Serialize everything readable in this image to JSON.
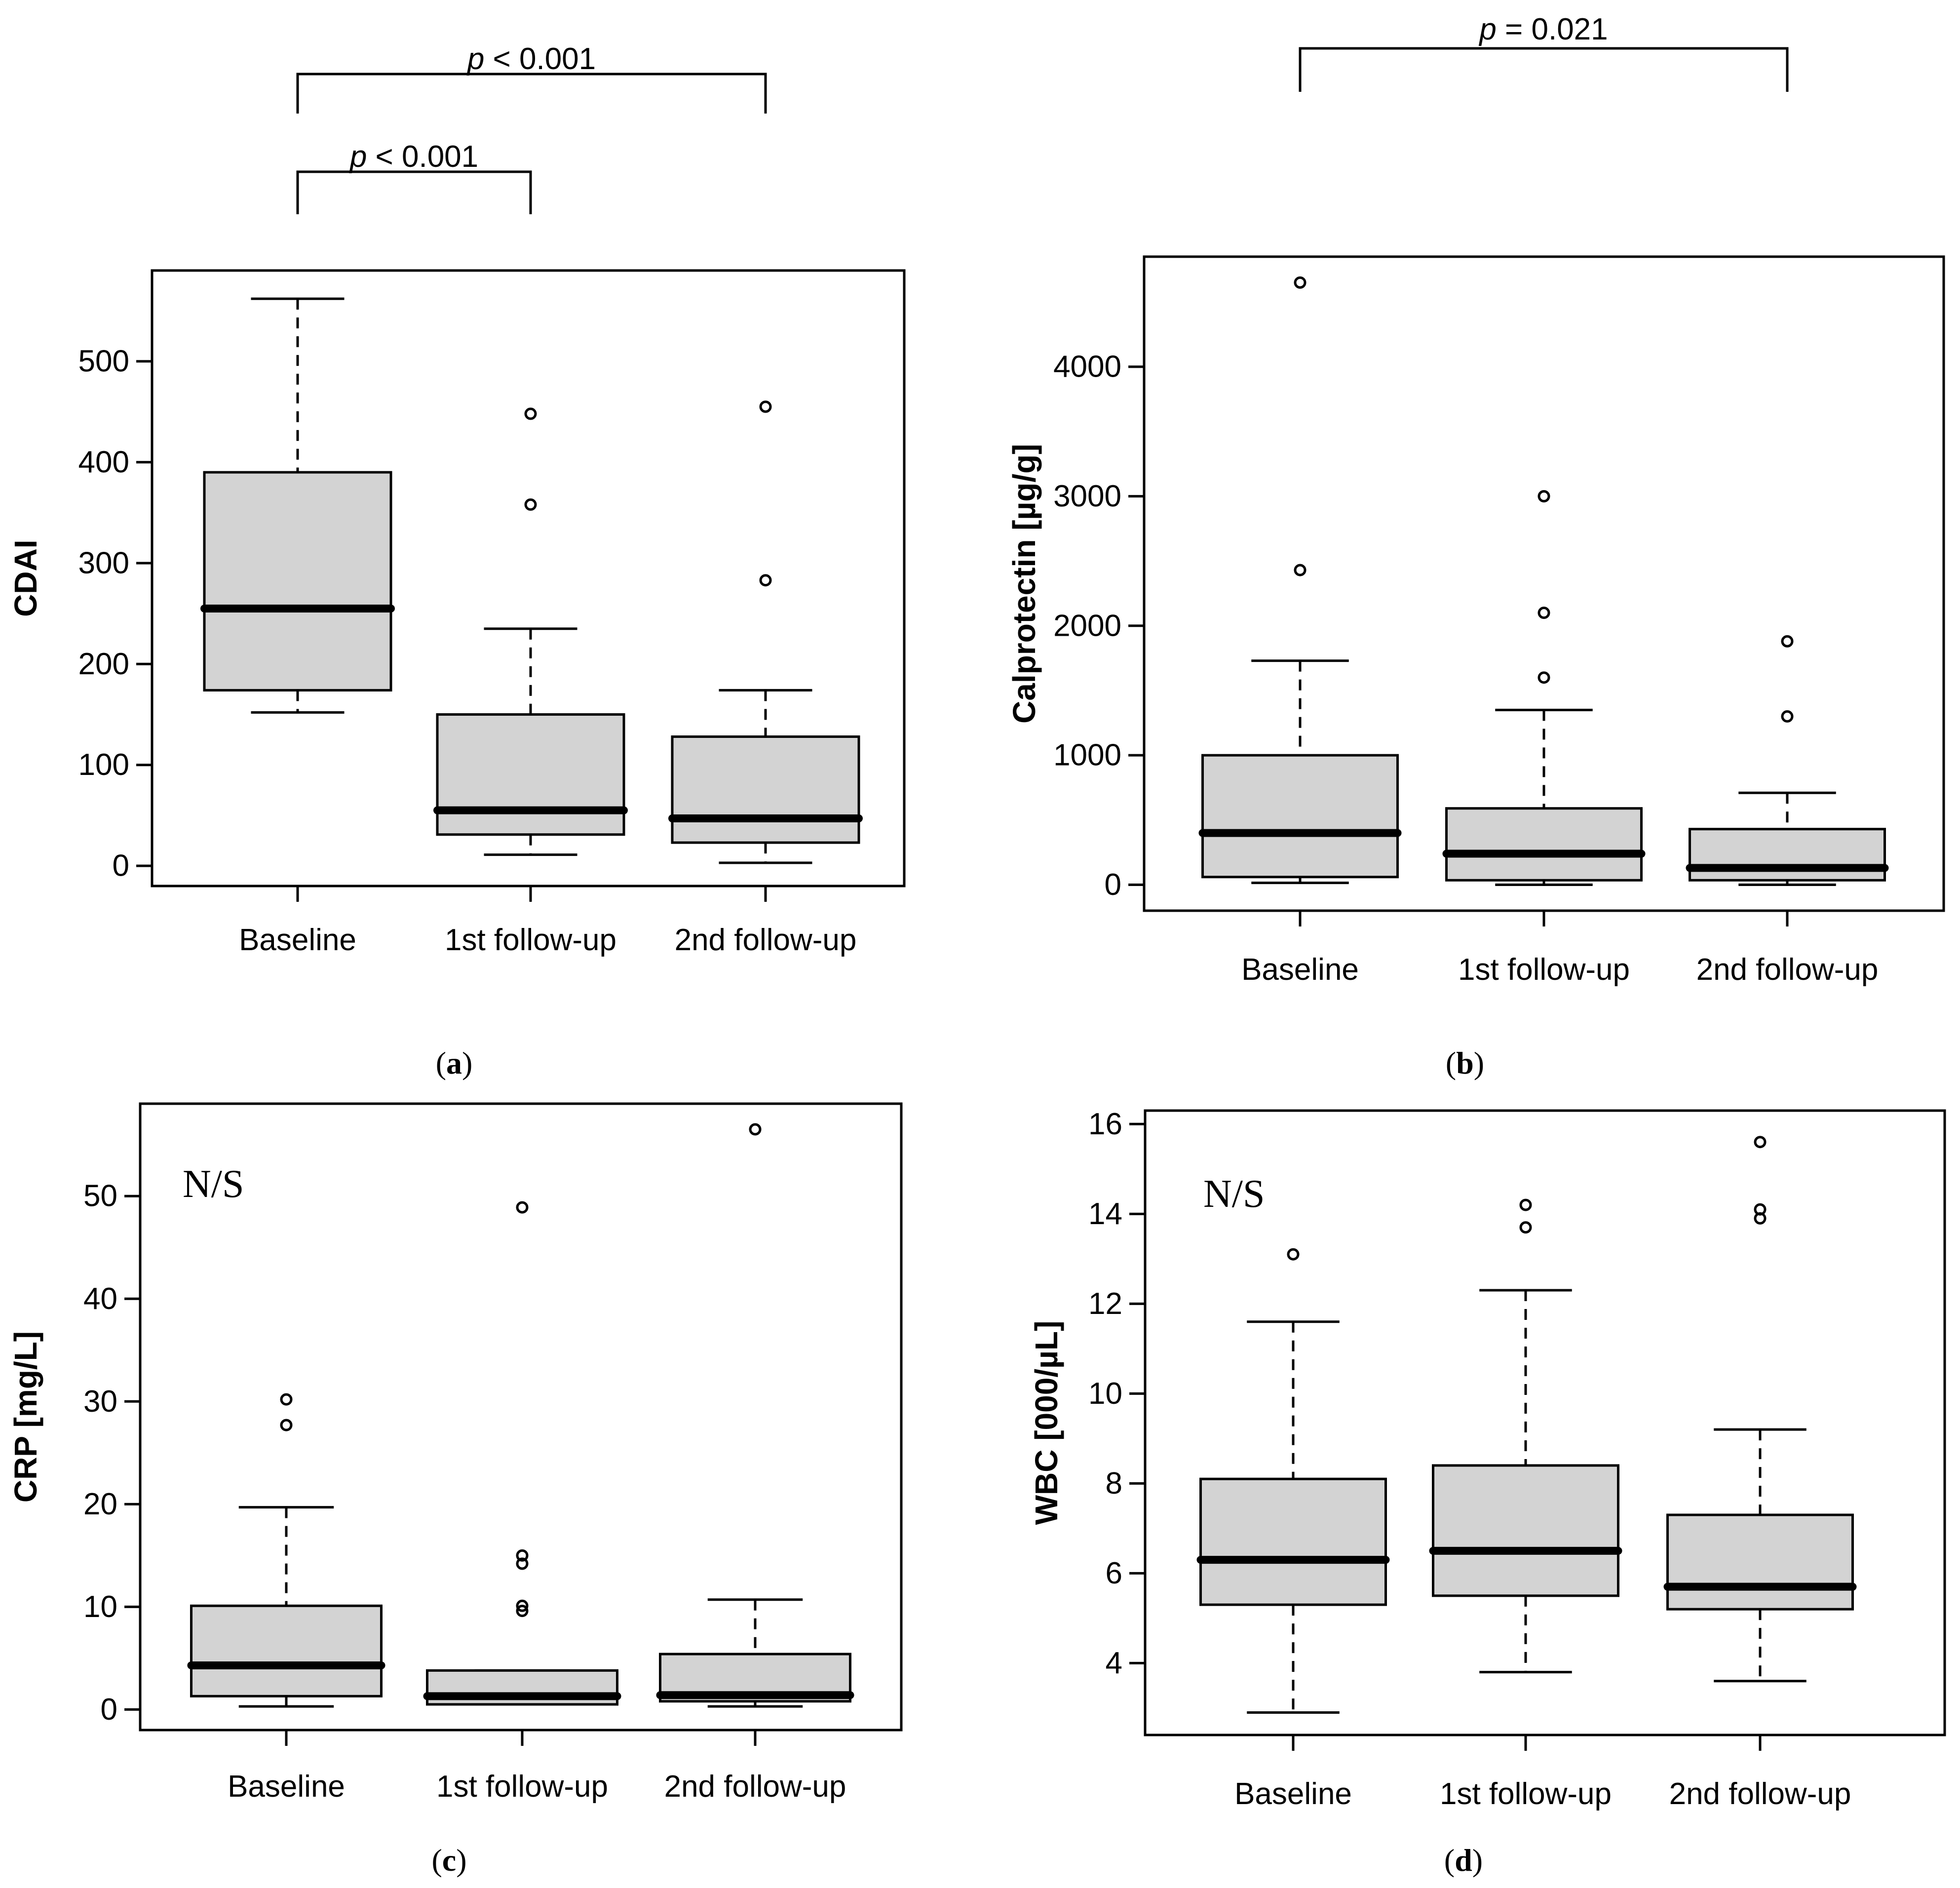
{
  "chart_data": [
    {
      "panel": "a",
      "panel_label": "(a)",
      "type": "boxplot",
      "ylabel": "CDAI",
      "categories": [
        "Baseline",
        "1st follow-up",
        "2nd follow-up"
      ],
      "ylim": [
        -20,
        590
      ],
      "yticks": [
        0,
        100,
        200,
        300,
        400,
        500
      ],
      "boxes": [
        {
          "name": "Baseline",
          "min": 152,
          "q1": 174,
          "median": 255,
          "q3": 390,
          "max": 562,
          "outliers": []
        },
        {
          "name": "1st follow-up",
          "min": 11,
          "q1": 31,
          "median": 55,
          "q3": 150,
          "max": 235,
          "outliers": [
            358,
            448
          ]
        },
        {
          "name": "2nd follow-up",
          "min": 3,
          "q1": 23,
          "median": 47,
          "q3": 128,
          "max": 174,
          "outliers": [
            283,
            455
          ]
        }
      ],
      "annotations": [
        {
          "from": 0,
          "to": 2,
          "prefix": "p",
          "text": " < 0.001"
        },
        {
          "from": 0,
          "to": 1,
          "prefix": "p",
          "text": " < 0.001"
        }
      ]
    },
    {
      "panel": "b",
      "panel_label": "(b)",
      "type": "boxplot",
      "ylabel": "Calprotectin [µg/g]",
      "categories": [
        "Baseline",
        "1st follow-up",
        "2nd follow-up"
      ],
      "ylim": [
        -200,
        4850
      ],
      "yticks": [
        0,
        1000,
        2000,
        3000,
        4000
      ],
      "boxes": [
        {
          "name": "Baseline",
          "min": 15,
          "q1": 60,
          "median": 400,
          "q3": 1000,
          "max": 1730,
          "outliers": [
            2430,
            4650
          ]
        },
        {
          "name": "1st follow-up",
          "min": 0,
          "q1": 35,
          "median": 240,
          "q3": 590,
          "max": 1350,
          "outliers": [
            1600,
            2100,
            3000
          ]
        },
        {
          "name": "2nd follow-up",
          "min": 0,
          "q1": 35,
          "median": 130,
          "q3": 430,
          "max": 710,
          "outliers": [
            1300,
            1880
          ]
        }
      ],
      "annotations": [
        {
          "from": 0,
          "to": 2,
          "prefix": "p",
          "text": " = 0.021"
        }
      ]
    },
    {
      "panel": "c",
      "panel_label": "(c)",
      "type": "boxplot",
      "ylabel": "CRP [mg/L]",
      "categories": [
        "Baseline",
        "1st follow-up",
        "2nd follow-up"
      ],
      "ylim": [
        -2,
        59
      ],
      "yticks": [
        0,
        10,
        20,
        30,
        40,
        50
      ],
      "note": "N/S",
      "boxes": [
        {
          "name": "Baseline",
          "min": 0.3,
          "q1": 1.3,
          "median": 4.3,
          "q3": 10.1,
          "max": 19.7,
          "outliers": [
            27.7,
            30.2
          ]
        },
        {
          "name": "1st follow-up",
          "min": 0.5,
          "q1": 0.5,
          "median": 1.3,
          "q3": 3.8,
          "max": 3.8,
          "outliers": [
            9.6,
            10.1,
            14.2,
            15.0,
            48.9
          ]
        },
        {
          "name": "2nd follow-up",
          "min": 0.3,
          "q1": 0.8,
          "median": 1.4,
          "q3": 5.4,
          "max": 10.7,
          "outliers": [
            56.5
          ]
        }
      ],
      "annotations": []
    },
    {
      "panel": "d",
      "panel_label": "(d)",
      "type": "boxplot",
      "ylabel": "WBC [000/µL]",
      "categories": [
        "Baseline",
        "1st follow-up",
        "2nd follow-up"
      ],
      "ylim": [
        2.4,
        16.3
      ],
      "yticks": [
        4,
        6,
        8,
        10,
        12,
        14,
        16
      ],
      "note": "N/S",
      "boxes": [
        {
          "name": "Baseline",
          "min": 2.9,
          "q1": 5.3,
          "median": 6.3,
          "q3": 8.1,
          "max": 11.6,
          "outliers": [
            13.1
          ]
        },
        {
          "name": "1st follow-up",
          "min": 3.8,
          "q1": 5.5,
          "median": 6.5,
          "q3": 8.4,
          "max": 12.3,
          "outliers": [
            13.7,
            14.2
          ]
        },
        {
          "name": "2nd follow-up",
          "min": 3.6,
          "q1": 5.2,
          "median": 5.7,
          "q3": 7.3,
          "max": 9.2,
          "outliers": [
            13.9,
            14.1,
            15.6
          ]
        }
      ],
      "annotations": []
    }
  ]
}
